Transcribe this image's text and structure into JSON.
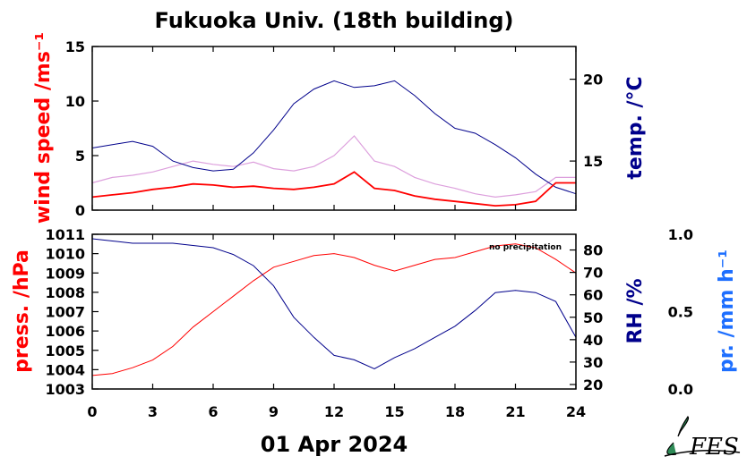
{
  "chart_data": [
    {
      "type": "line",
      "title": "Fukuoka Univ. (18th building)",
      "xlim": [
        0,
        24
      ],
      "x_ticks": [
        "0",
        "3",
        "6",
        "9",
        "12",
        "15",
        "18",
        "21",
        "24"
      ],
      "left_axis": {
        "label": "wind speed /ms⁻¹",
        "color": "#ff0000",
        "ylim": [
          0,
          15
        ],
        "ticks": [
          "0",
          "5",
          "10",
          "15"
        ]
      },
      "right_axis": {
        "label": "temp. /°C",
        "color": "#00008b",
        "ylim": [
          12,
          22
        ],
        "ticks": [
          "15",
          "20"
        ]
      },
      "series": [
        {
          "axis": "right",
          "color": "#00008b",
          "x": [
            0,
            1,
            2,
            3,
            4,
            5,
            6,
            7,
            8,
            9,
            10,
            11,
            12,
            13,
            14,
            15,
            16,
            17,
            18,
            19,
            20,
            21,
            22,
            23,
            24
          ],
          "values": [
            15.8,
            16.0,
            16.2,
            15.9,
            15.0,
            14.6,
            14.4,
            14.5,
            15.5,
            16.9,
            18.5,
            19.4,
            19.9,
            19.5,
            19.6,
            19.9,
            19.0,
            17.9,
            17.0,
            16.7,
            16.0,
            15.2,
            14.2,
            13.4,
            13.0
          ]
        },
        {
          "axis": "left",
          "color": "#ff0000",
          "x": [
            0,
            1,
            2,
            3,
            4,
            5,
            6,
            7,
            8,
            9,
            10,
            11,
            12,
            13,
            14,
            15,
            16,
            17,
            18,
            19,
            20,
            21,
            22,
            23,
            24
          ],
          "values": [
            1.2,
            1.4,
            1.6,
            1.9,
            2.1,
            2.4,
            2.3,
            2.1,
            2.2,
            2.0,
            1.9,
            2.1,
            2.4,
            3.5,
            2.0,
            1.8,
            1.3,
            1.0,
            0.8,
            0.6,
            0.4,
            0.5,
            0.8,
            2.5,
            2.5
          ]
        },
        {
          "axis": "left",
          "color": "#dda0dd",
          "x": [
            0,
            1,
            2,
            3,
            4,
            5,
            6,
            7,
            8,
            9,
            10,
            11,
            12,
            13,
            14,
            15,
            16,
            17,
            18,
            19,
            20,
            21,
            22,
            23,
            24
          ],
          "values": [
            2.5,
            3.0,
            3.2,
            3.5,
            4.0,
            4.5,
            4.2,
            4.0,
            4.4,
            3.8,
            3.6,
            4.0,
            5.0,
            6.8,
            4.5,
            4.0,
            3.0,
            2.4,
            2.0,
            1.5,
            1.2,
            1.4,
            1.7,
            3.0,
            3.0
          ]
        }
      ]
    },
    {
      "type": "line",
      "xlim": [
        0,
        24
      ],
      "xlabel": "01 Apr 2024",
      "x_ticks": [
        "0",
        "3",
        "6",
        "9",
        "12",
        "15",
        "18",
        "21",
        "24"
      ],
      "left_axis": {
        "label": "press. /hPa",
        "color": "#ff0000",
        "ylim": [
          1003,
          1011
        ],
        "ticks": [
          "1003",
          "1004",
          "1005",
          "1006",
          "1007",
          "1008",
          "1009",
          "1010",
          "1011"
        ]
      },
      "right_axis": {
        "label": "RH /%",
        "color": "#00008b",
        "ylim": [
          18,
          87
        ],
        "ticks": [
          "20",
          "30",
          "40",
          "50",
          "60",
          "70",
          "80"
        ]
      },
      "far_right_axis": {
        "label": "pr. /mm h⁻¹",
        "color": "#1e6fff",
        "ylim": [
          0,
          1
        ],
        "ticks": [
          "0.0",
          "0.5",
          "1.0"
        ]
      },
      "annotation": "no precipitation",
      "series": [
        {
          "axis": "left",
          "color": "#ff0000",
          "x": [
            0,
            1,
            2,
            3,
            4,
            5,
            6,
            7,
            8,
            9,
            10,
            11,
            12,
            13,
            14,
            15,
            16,
            17,
            18,
            19,
            20,
            21,
            22,
            23,
            24
          ],
          "values": [
            1003.7,
            1003.8,
            1004.1,
            1004.5,
            1005.2,
            1006.2,
            1007.0,
            1007.8,
            1008.6,
            1009.3,
            1009.6,
            1009.9,
            1010.0,
            1009.8,
            1009.4,
            1009.1,
            1009.4,
            1009.7,
            1009.8,
            1010.1,
            1010.4,
            1010.5,
            1010.3,
            1009.7,
            1009.0
          ]
        },
        {
          "axis": "right",
          "color": "#00008b",
          "x": [
            0,
            1,
            2,
            3,
            4,
            5,
            6,
            7,
            8,
            9,
            10,
            11,
            12,
            13,
            14,
            15,
            16,
            17,
            18,
            19,
            20,
            21,
            22,
            23,
            24
          ],
          "values": [
            85,
            84,
            83,
            83,
            83,
            82,
            81,
            78,
            73,
            64,
            50,
            41,
            33,
            31,
            27,
            32,
            36,
            41,
            46,
            53,
            61,
            62,
            61,
            57,
            41
          ]
        }
      ]
    }
  ],
  "logo": {
    "text": "FES",
    "color": "#2e8b57"
  }
}
